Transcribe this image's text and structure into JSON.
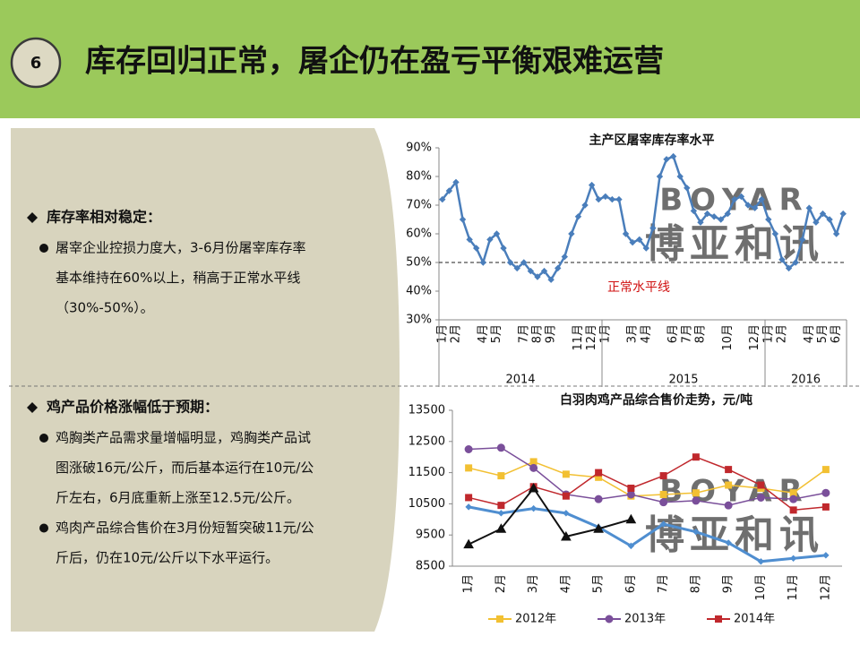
{
  "header": {
    "number": "6",
    "title": "库存回归正常，屠企仍在盈亏平衡艰难运营"
  },
  "left": {
    "sections": [
      {
        "heading": "库存率相对稳定：",
        "bullets": [
          {
            "lines": [
              "屠宰企业控损力度大，3-6月份屠宰库存率",
              "基本维持在60%以上，稍高于正常水平线",
              "（30%-50%）。"
            ]
          }
        ]
      },
      {
        "heading": "鸡产品价格涨幅低于预期：",
        "bullets": [
          {
            "lines": [
              "鸡胸类产品需求量增幅明显，鸡胸类产品试",
              "图涨破16元/公斤，而后基本运行在10元/公",
              "斤左右，6月底重新上涨至12.5元/公斤。"
            ]
          },
          {
            "lines": [
              "鸡肉产品综合售价在3月份短暂突破11元/公",
              "斤后，仍在10元/公斤以下水平运行。"
            ]
          }
        ]
      }
    ]
  },
  "watermark": [
    "BOYAR",
    "博亚和讯"
  ],
  "chart_data": [
    {
      "type": "line",
      "title": "主产区屠宰库存率水平",
      "categories": [
        "1月",
        null,
        "2月",
        null,
        null,
        null,
        "4月",
        null,
        "5月",
        null,
        null,
        null,
        "7月",
        null,
        "8月",
        null,
        "9月",
        null,
        null,
        null,
        "11月",
        null,
        "12月",
        null,
        "1月",
        null,
        null,
        null,
        "3月",
        null,
        "4月",
        null,
        null,
        null,
        "6月",
        null,
        "7月",
        null,
        "8月",
        null,
        null,
        null,
        "10月",
        null,
        null,
        null,
        "12月",
        null,
        "1月",
        null,
        "2月",
        null,
        null,
        null,
        "4月",
        null,
        "5月",
        null,
        "6月",
        null
      ],
      "groups": [
        "2014",
        "2015",
        "2016"
      ],
      "series": [
        {
          "color": "#4a7ebb",
          "marker": "diamond",
          "values": [
            72,
            75,
            78,
            65,
            58,
            55,
            50,
            58,
            60,
            55,
            50,
            48,
            50,
            47,
            45,
            47,
            44,
            48,
            52,
            60,
            66,
            70,
            77,
            72,
            73,
            72,
            72,
            60,
            57,
            58,
            55,
            62,
            80,
            86,
            87,
            80,
            76,
            68,
            64,
            67,
            66,
            65,
            67,
            72,
            73,
            70,
            69,
            72,
            65,
            60,
            51,
            48,
            50,
            58,
            69,
            64,
            67,
            65,
            60,
            67
          ]
        }
      ],
      "ylim": [
        30,
        90
      ],
      "yticks": [
        {
          "value": 30,
          "label": "30%"
        },
        {
          "value": 40,
          "label": "40%"
        },
        {
          "value": 50,
          "label": "50%"
        },
        {
          "value": 60,
          "label": "60%"
        },
        {
          "value": 70,
          "label": "70%"
        },
        {
          "value": 80,
          "label": "80%"
        },
        {
          "value": 90,
          "label": "90%"
        }
      ],
      "reference_line": 50,
      "annotation": "正常水平线"
    },
    {
      "type": "line",
      "title": "白羽肉鸡产品综合售价走势，元/吨",
      "categories": [
        "1月",
        "2月",
        "3月",
        "4月",
        "5月",
        "6月",
        "7月",
        "8月",
        "9月",
        "10月",
        "11月",
        "12月"
      ],
      "series": [
        {
          "name": "2012年",
          "color": "#f2c032",
          "marker": "square",
          "width": 1.5,
          "values": [
            11650,
            11400,
            11850,
            11450,
            11350,
            10750,
            10800,
            10850,
            11100,
            11000,
            10850,
            11600
          ]
        },
        {
          "name": "2013年",
          "color": "#7a4f9a",
          "marker": "circle",
          "width": 1.5,
          "values": [
            12250,
            12300,
            11650,
            10800,
            10650,
            10800,
            10550,
            10600,
            10450,
            10700,
            10650,
            10850
          ]
        },
        {
          "name": "2014年",
          "color": "#c0282d",
          "marker": "square",
          "width": 1.5,
          "values": [
            10700,
            10450,
            11050,
            10750,
            11500,
            11000,
            11400,
            12000,
            11600,
            11100,
            10300,
            10400
          ]
        },
        {
          "color": "#4f8ed0",
          "marker": "diamond",
          "width": 3,
          "values": [
            10400,
            10200,
            10350,
            10200,
            9750,
            9150,
            9850,
            9600,
            9250,
            8650,
            8750,
            8850
          ]
        },
        {
          "color": "#111111",
          "marker": "triangle",
          "width": 2,
          "values": [
            9200,
            9700,
            11000,
            9450,
            9700,
            10000,
            null,
            null,
            null,
            null,
            null,
            null
          ]
        }
      ],
      "ylim": [
        8500,
        13500
      ],
      "yticks": [
        8500,
        9500,
        10500,
        11500,
        12500,
        13500
      ]
    }
  ]
}
